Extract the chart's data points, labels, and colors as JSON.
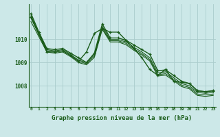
{
  "background_color": "#cce8e8",
  "grid_color": "#aacccc",
  "line_color": "#1a5c1a",
  "xlabel": "Graphe pression niveau de la mer (hPa)",
  "xlabel_fontsize": 6.5,
  "xticks": [
    0,
    1,
    2,
    3,
    4,
    5,
    6,
    7,
    8,
    9,
    10,
    11,
    12,
    13,
    14,
    15,
    16,
    17,
    18,
    19,
    20,
    21,
    22,
    23
  ],
  "yticks": [
    1008,
    1009,
    1010
  ],
  "ylim": [
    1007.1,
    1011.5
  ],
  "xlim": [
    -0.3,
    23.3
  ],
  "figsize": [
    3.2,
    2.0
  ],
  "dpi": 100,
  "series": [
    {
      "x": [
        0,
        1,
        2,
        3,
        4,
        5,
        6,
        7,
        8,
        9,
        10,
        11,
        12,
        13,
        14,
        15,
        16,
        17,
        18,
        19,
        20,
        21,
        22,
        23
      ],
      "y": [
        1011.1,
        1010.3,
        1009.6,
        1009.55,
        1009.6,
        1009.4,
        1009.2,
        1009.0,
        1009.4,
        1010.65,
        1010.05,
        1010.05,
        1009.95,
        1009.75,
        1009.55,
        1009.35,
        1008.65,
        1008.68,
        1008.45,
        1008.2,
        1008.1,
        1007.78,
        1007.75,
        1007.78
      ],
      "marker": true,
      "lw": 1.0
    },
    {
      "x": [
        0,
        1,
        2,
        3,
        4,
        5,
        6,
        7,
        8,
        9,
        10,
        11,
        12,
        13,
        14,
        15,
        16,
        17,
        18,
        19,
        20,
        21,
        22,
        23
      ],
      "y": [
        1011.0,
        1010.25,
        1009.55,
        1009.5,
        1009.55,
        1009.35,
        1009.1,
        1009.0,
        1009.35,
        1010.55,
        1009.98,
        1009.98,
        1009.88,
        1009.65,
        1009.45,
        1009.2,
        1008.55,
        1008.6,
        1008.35,
        1008.1,
        1008.0,
        1007.72,
        1007.68,
        1007.72
      ],
      "marker": false,
      "lw": 0.8
    },
    {
      "x": [
        0,
        1,
        2,
        3,
        4,
        5,
        6,
        7,
        8,
        9,
        10,
        11,
        12,
        13,
        14,
        15,
        16,
        17,
        18,
        19,
        20,
        21,
        22,
        23
      ],
      "y": [
        1010.9,
        1010.2,
        1009.5,
        1009.45,
        1009.5,
        1009.3,
        1009.05,
        1008.95,
        1009.28,
        1010.48,
        1009.93,
        1009.93,
        1009.82,
        1009.58,
        1009.38,
        1009.12,
        1008.48,
        1008.52,
        1008.28,
        1008.03,
        1007.93,
        1007.65,
        1007.61,
        1007.65
      ],
      "marker": false,
      "lw": 0.8
    },
    {
      "x": [
        0,
        1,
        2,
        3,
        4,
        5,
        6,
        7,
        8,
        9,
        10,
        11,
        12,
        13,
        14,
        15,
        16,
        17,
        18,
        19,
        20,
        21,
        22,
        23
      ],
      "y": [
        1010.75,
        1010.1,
        1009.45,
        1009.4,
        1009.45,
        1009.25,
        1009.0,
        1008.9,
        1009.22,
        1010.42,
        1009.88,
        1009.88,
        1009.76,
        1009.52,
        1009.32,
        1009.06,
        1008.42,
        1008.46,
        1008.22,
        1007.97,
        1007.87,
        1007.59,
        1007.55,
        1007.59
      ],
      "marker": false,
      "lw": 0.8
    }
  ],
  "curve2_data": {
    "x": [
      0,
      1,
      2,
      3,
      4,
      5,
      6,
      7,
      8,
      9,
      10,
      11,
      12,
      13,
      14,
      15,
      16,
      17,
      18,
      19,
      20,
      21,
      22,
      23
    ],
    "y": [
      1010.95,
      1010.2,
      1009.45,
      1009.45,
      1009.5,
      1009.3,
      1009.05,
      1009.45,
      1010.25,
      1010.45,
      1010.3,
      1010.3,
      1009.95,
      1009.6,
      1009.2,
      1008.7,
      1008.45,
      1008.7,
      1008.2,
      1008.15,
      1008.1,
      1007.8,
      1007.75,
      1007.8
    ],
    "marker": true,
    "lw": 1.0
  }
}
